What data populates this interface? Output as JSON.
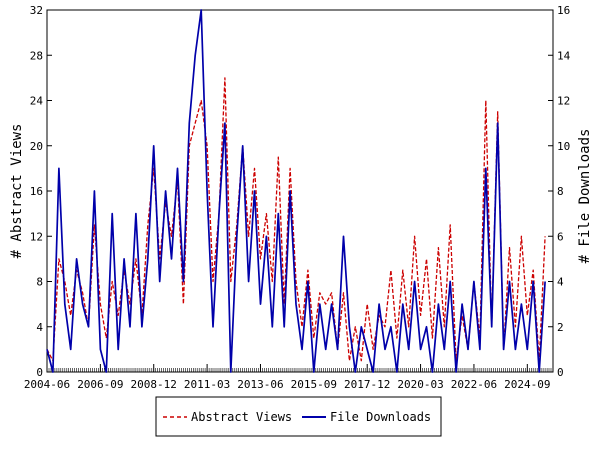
{
  "chart_data": {
    "type": "line",
    "title": "",
    "ylabel_left": "# Abstract Views",
    "ylabel_right": "# File Downloads",
    "xlabel": "",
    "x_range": [
      "2004-06",
      "2025-10"
    ],
    "ylim_left": [
      0,
      32
    ],
    "ylim_right": [
      0,
      16
    ],
    "left_ticks": [
      "0",
      "4",
      "8",
      "12",
      "16",
      "20",
      "24",
      "28",
      "32"
    ],
    "right_ticks": [
      "0",
      "2",
      "4",
      "6",
      "8",
      "10",
      "12",
      "14",
      "16"
    ],
    "x_ticks": [
      "2004-06",
      "2006-09",
      "2008-12",
      "2011-03",
      "2013-06",
      "2015-09",
      "2017-12",
      "2020-03",
      "2022-06",
      "2024-09"
    ],
    "grid": false,
    "legend_position": "bottom-center",
    "colors": {
      "views": "#cc0000",
      "downloads": "#0000aa"
    },
    "series": [
      {
        "name": "Abstract Views",
        "axis": "left",
        "style": "dashed",
        "points": [
          [
            "2004-06",
            2
          ],
          [
            "2004-09",
            1
          ],
          [
            "2004-12",
            10
          ],
          [
            "2005-03",
            8
          ],
          [
            "2005-06",
            5
          ],
          [
            "2005-09",
            9
          ],
          [
            "2005-12",
            7
          ],
          [
            "2006-03",
            4
          ],
          [
            "2006-06",
            13
          ],
          [
            "2006-09",
            6
          ],
          [
            "2006-12",
            3
          ],
          [
            "2007-03",
            8
          ],
          [
            "2007-06",
            5
          ],
          [
            "2007-09",
            9
          ],
          [
            "2007-12",
            6
          ],
          [
            "2008-03",
            10
          ],
          [
            "2008-06",
            5
          ],
          [
            "2008-09",
            13
          ],
          [
            "2008-12",
            18
          ],
          [
            "2009-03",
            10
          ],
          [
            "2009-06",
            15
          ],
          [
            "2009-09",
            12
          ],
          [
            "2009-12",
            17
          ],
          [
            "2010-03",
            6
          ],
          [
            "2010-06",
            20
          ],
          [
            "2010-09",
            22
          ],
          [
            "2010-12",
            24
          ],
          [
            "2011-03",
            20
          ],
          [
            "2011-06",
            8
          ],
          [
            "2011-09",
            14
          ],
          [
            "2011-12",
            26
          ],
          [
            "2012-03",
            8
          ],
          [
            "2012-06",
            13
          ],
          [
            "2012-09",
            20
          ],
          [
            "2012-12",
            12
          ],
          [
            "2013-03",
            18
          ],
          [
            "2013-06",
            10
          ],
          [
            "2013-09",
            14
          ],
          [
            "2013-12",
            8
          ],
          [
            "2014-03",
            19
          ],
          [
            "2014-06",
            6
          ],
          [
            "2014-09",
            18
          ],
          [
            "2014-12",
            8
          ],
          [
            "2015-03",
            4
          ],
          [
            "2015-06",
            9
          ],
          [
            "2015-09",
            3
          ],
          [
            "2015-12",
            7
          ],
          [
            "2016-03",
            6
          ],
          [
            "2016-06",
            7
          ],
          [
            "2016-09",
            2
          ],
          [
            "2016-12",
            7
          ],
          [
            "2017-03",
            1
          ],
          [
            "2017-06",
            4
          ],
          [
            "2017-09",
            1
          ],
          [
            "2017-12",
            6
          ],
          [
            "2018-03",
            2
          ],
          [
            "2018-06",
            5
          ],
          [
            "2018-09",
            4
          ],
          [
            "2018-12",
            9
          ],
          [
            "2019-03",
            3
          ],
          [
            "2019-06",
            9
          ],
          [
            "2019-09",
            4
          ],
          [
            "2019-12",
            12
          ],
          [
            "2020-03",
            5
          ],
          [
            "2020-06",
            10
          ],
          [
            "2020-09",
            3
          ],
          [
            "2020-12",
            11
          ],
          [
            "2021-03",
            4
          ],
          [
            "2021-06",
            13
          ],
          [
            "2021-09",
            1
          ],
          [
            "2021-12",
            5
          ],
          [
            "2022-03",
            2
          ],
          [
            "2022-06",
            8
          ],
          [
            "2022-09",
            3
          ],
          [
            "2022-12",
            24
          ],
          [
            "2023-03",
            4
          ],
          [
            "2023-06",
            23
          ],
          [
            "2023-09",
            2
          ],
          [
            "2023-12",
            11
          ],
          [
            "2024-03",
            4
          ],
          [
            "2024-06",
            12
          ],
          [
            "2024-09",
            5
          ],
          [
            "2024-12",
            9
          ],
          [
            "2025-03",
            1
          ],
          [
            "2025-06",
            12
          ]
        ]
      },
      {
        "name": "File Downloads",
        "axis": "right",
        "style": "solid",
        "points": [
          [
            "2004-06",
            1
          ],
          [
            "2004-09",
            0
          ],
          [
            "2004-12",
            9
          ],
          [
            "2005-03",
            3
          ],
          [
            "2005-06",
            1
          ],
          [
            "2005-09",
            5
          ],
          [
            "2005-12",
            3
          ],
          [
            "2006-03",
            2
          ],
          [
            "2006-06",
            8
          ],
          [
            "2006-09",
            1
          ],
          [
            "2006-12",
            0
          ],
          [
            "2007-03",
            7
          ],
          [
            "2007-06",
            1
          ],
          [
            "2007-09",
            5
          ],
          [
            "2007-12",
            2
          ],
          [
            "2008-03",
            7
          ],
          [
            "2008-06",
            2
          ],
          [
            "2008-09",
            5
          ],
          [
            "2008-12",
            10
          ],
          [
            "2009-03",
            4
          ],
          [
            "2009-06",
            8
          ],
          [
            "2009-09",
            5
          ],
          [
            "2009-12",
            9
          ],
          [
            "2010-03",
            4
          ],
          [
            "2010-06",
            11
          ],
          [
            "2010-09",
            14
          ],
          [
            "2010-12",
            16
          ],
          [
            "2011-03",
            8
          ],
          [
            "2011-06",
            2
          ],
          [
            "2011-09",
            7
          ],
          [
            "2011-12",
            11
          ],
          [
            "2012-03",
            0
          ],
          [
            "2012-06",
            6
          ],
          [
            "2012-09",
            10
          ],
          [
            "2012-12",
            4
          ],
          [
            "2013-03",
            8
          ],
          [
            "2013-06",
            3
          ],
          [
            "2013-09",
            6
          ],
          [
            "2013-12",
            2
          ],
          [
            "2014-03",
            7
          ],
          [
            "2014-06",
            2
          ],
          [
            "2014-09",
            8
          ],
          [
            "2014-12",
            3
          ],
          [
            "2015-03",
            1
          ],
          [
            "2015-06",
            4
          ],
          [
            "2015-09",
            0
          ],
          [
            "2015-12",
            3
          ],
          [
            "2016-03",
            1
          ],
          [
            "2016-06",
            3
          ],
          [
            "2016-09",
            1
          ],
          [
            "2016-12",
            6
          ],
          [
            "2017-03",
            2
          ],
          [
            "2017-06",
            0
          ],
          [
            "2017-09",
            2
          ],
          [
            "2017-12",
            1
          ],
          [
            "2018-03",
            0
          ],
          [
            "2018-06",
            3
          ],
          [
            "2018-09",
            1
          ],
          [
            "2018-12",
            2
          ],
          [
            "2019-03",
            0
          ],
          [
            "2019-06",
            3
          ],
          [
            "2019-09",
            1
          ],
          [
            "2019-12",
            4
          ],
          [
            "2020-03",
            1
          ],
          [
            "2020-06",
            2
          ],
          [
            "2020-09",
            0
          ],
          [
            "2020-12",
            3
          ],
          [
            "2021-03",
            1
          ],
          [
            "2021-06",
            4
          ],
          [
            "2021-09",
            0
          ],
          [
            "2021-12",
            3
          ],
          [
            "2022-03",
            1
          ],
          [
            "2022-06",
            4
          ],
          [
            "2022-09",
            1
          ],
          [
            "2022-12",
            9
          ],
          [
            "2023-03",
            2
          ],
          [
            "2023-06",
            11
          ],
          [
            "2023-09",
            1
          ],
          [
            "2023-12",
            4
          ],
          [
            "2024-03",
            1
          ],
          [
            "2024-06",
            3
          ],
          [
            "2024-09",
            1
          ],
          [
            "2024-12",
            4
          ],
          [
            "2025-03",
            0
          ],
          [
            "2025-06",
            4
          ]
        ]
      }
    ]
  }
}
